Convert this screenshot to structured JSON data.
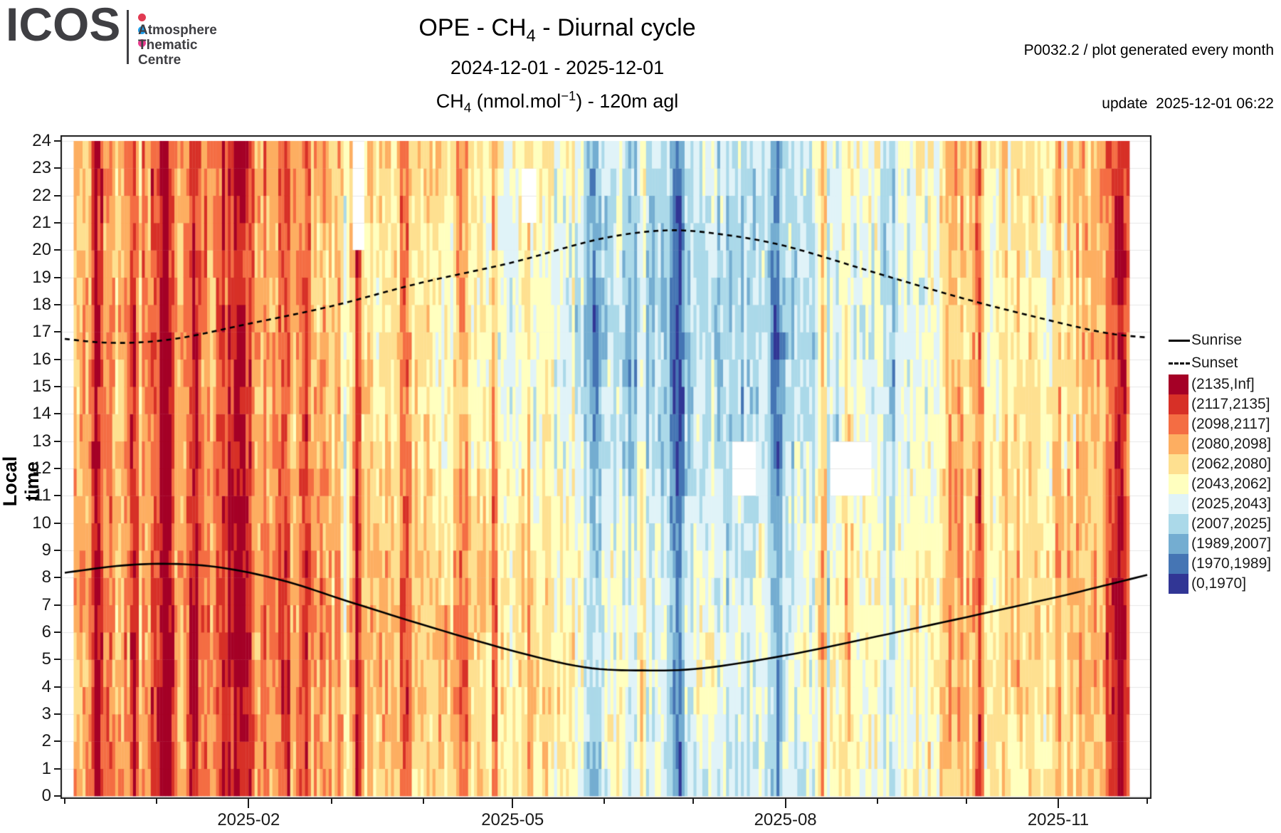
{
  "logo": {
    "brand": "ICOS",
    "unit_lines": [
      "Atmosphere",
      "Thematic",
      "Centre"
    ],
    "dot_colors": [
      "#e13a52",
      "#1e9ce8",
      "#e83d8f"
    ],
    "text_color": "#3f3f43"
  },
  "header": {
    "title_pre": "OPE - CH",
    "title_sub": "4",
    "title_post": " - Diurnal cycle",
    "subtitle": "2024-12-01 - 2025-12-01",
    "caption_pre": "CH",
    "caption_sub": "4",
    "caption_mid": " (nmol.mol",
    "caption_sup": "−1",
    "caption_post": ") - 120m agl",
    "meta_line1": "P0032.2 / plot generated every month",
    "meta_line2": "update  2025-12-01 06:22"
  },
  "axes": {
    "y_label": "Local time",
    "y_ticks": [
      24,
      23,
      22,
      21,
      20,
      19,
      18,
      17,
      16,
      15,
      14,
      13,
      12,
      11,
      10,
      9,
      8,
      7,
      6,
      5,
      4,
      3,
      2,
      1,
      0
    ]
  },
  "legend": {
    "sunrise_label": "Sunrise",
    "sunset_label": "Sunset"
  },
  "chart_data": {
    "type": "heatmap",
    "title": "OPE - CH4 - Diurnal cycle",
    "x_range": [
      "2024-12-01",
      "2025-12-01"
    ],
    "ylabel": "Local time",
    "ylim": [
      0,
      24
    ],
    "grid_color": "#e7e7e7",
    "x_ticks": [
      {
        "day": 62,
        "label": "2025-02"
      },
      {
        "day": 151,
        "label": "2025-05"
      },
      {
        "day": 243,
        "label": "2025-08"
      },
      {
        "day": 335,
        "label": "2025-11"
      }
    ],
    "x_minor_days": [
      0,
      31,
      90,
      121,
      182,
      212,
      274,
      304,
      365
    ],
    "bins": [
      {
        "label": "(2135,Inf]",
        "color": "#a50026",
        "min": 2135
      },
      {
        "label": "(2117,2135]",
        "color": "#d73027",
        "min": 2117
      },
      {
        "label": "(2098,2117]",
        "color": "#f46d43",
        "min": 2098
      },
      {
        "label": "(2080,2098]",
        "color": "#fdae61",
        "min": 2080
      },
      {
        "label": "(2062,2080]",
        "color": "#fee090",
        "min": 2062
      },
      {
        "label": "(2043,2062]",
        "color": "#ffffbf",
        "min": 2043
      },
      {
        "label": "(2025,2043]",
        "color": "#e0f3f8",
        "min": 2025
      },
      {
        "label": "(2007,2025]",
        "color": "#abd9e9",
        "min": 2007
      },
      {
        "label": "(1989,2007]",
        "color": "#74add1",
        "min": 1989
      },
      {
        "label": "(1970,1989]",
        "color": "#4575b4",
        "min": 1970
      },
      {
        "label": "(0,1970]",
        "color": "#313695",
        "min": 0
      }
    ],
    "base_points": [
      [
        0,
        2085
      ],
      [
        15,
        2088
      ],
      [
        45,
        2094
      ],
      [
        75,
        2089
      ],
      [
        105,
        2074
      ],
      [
        135,
        2063
      ],
      [
        165,
        2050
      ],
      [
        195,
        2026
      ],
      [
        225,
        2022
      ],
      [
        255,
        2032
      ],
      [
        285,
        2046
      ],
      [
        315,
        2066
      ],
      [
        345,
        2080
      ],
      [
        365,
        2086
      ]
    ],
    "episodes": [
      {
        "d": 8,
        "len": 5,
        "amp": 62
      },
      {
        "d": 21,
        "len": 4,
        "amp": 38
      },
      {
        "d": 29,
        "len": 8,
        "amp": 58
      },
      {
        "d": 41,
        "len": 5,
        "amp": 48
      },
      {
        "d": 51,
        "len": 13,
        "amp": 52
      },
      {
        "d": 72,
        "len": 4,
        "amp": 42
      },
      {
        "d": 79,
        "len": 4,
        "amp": 46
      },
      {
        "d": 97,
        "len": 3,
        "amp": 52
      },
      {
        "d": 112,
        "len": 5,
        "amp": 46
      },
      {
        "d": 131,
        "len": 5,
        "amp": 42
      },
      {
        "d": 143,
        "len": 3,
        "amp": 36
      },
      {
        "d": 154,
        "len": 4,
        "amp": 30
      },
      {
        "d": 161,
        "len": 4,
        "amp": 26
      },
      {
        "d": 193,
        "len": 3,
        "amp": 30
      },
      {
        "d": 217,
        "len": 3,
        "amp": 26
      },
      {
        "d": 253,
        "len": 4,
        "amp": 48
      },
      {
        "d": 261,
        "len": 5,
        "amp": 42
      },
      {
        "d": 295,
        "len": 10,
        "amp": 32
      },
      {
        "d": 305,
        "len": 5,
        "amp": 48
      },
      {
        "d": 351,
        "len": 8,
        "amp": 58
      },
      {
        "d": 93,
        "len": 3,
        "amp": -26
      },
      {
        "d": 175,
        "len": 6,
        "amp": -46
      },
      {
        "d": 204,
        "len": 5,
        "amp": -52
      },
      {
        "d": 237,
        "len": 5,
        "amp": -36
      },
      {
        "d": 276,
        "len": 5,
        "amp": -30
      },
      {
        "d": 329,
        "len": 4,
        "amp": -26
      }
    ],
    "missing": [
      {
        "d0": 0,
        "d1": 2,
        "h0": 0,
        "h1": 24
      },
      {
        "d0": 359,
        "d1": 365,
        "h0": 0,
        "h1": 24
      },
      {
        "d0": 97,
        "d1": 100,
        "h0": 20,
        "h1": 24
      },
      {
        "d0": 154,
        "d1": 158,
        "h0": 21,
        "h1": 23
      },
      {
        "d0": 225,
        "d1": 232,
        "h0": 11,
        "h1": 13
      },
      {
        "d0": 258,
        "d1": 271,
        "h0": 11,
        "h1": 13
      }
    ],
    "sunrise": {
      "points": [
        [
          0,
          8.18
        ],
        [
          20,
          8.45
        ],
        [
          38,
          8.5
        ],
        [
          55,
          8.33
        ],
        [
          75,
          7.85
        ],
        [
          95,
          7.15
        ],
        [
          120,
          6.3
        ],
        [
          150,
          5.35
        ],
        [
          175,
          4.72
        ],
        [
          195,
          4.6
        ],
        [
          215,
          4.68
        ],
        [
          243,
          5.15
        ],
        [
          274,
          5.85
        ],
        [
          304,
          6.55
        ],
        [
          335,
          7.3
        ],
        [
          352,
          7.75
        ],
        [
          365,
          8.1
        ]
      ]
    },
    "sunset": {
      "points": [
        [
          0,
          16.75
        ],
        [
          12,
          16.62
        ],
        [
          25,
          16.62
        ],
        [
          40,
          16.8
        ],
        [
          62,
          17.3
        ],
        [
          90,
          17.95
        ],
        [
          120,
          18.8
        ],
        [
          151,
          19.55
        ],
        [
          180,
          20.4
        ],
        [
          202,
          20.72
        ],
        [
          220,
          20.6
        ],
        [
          243,
          20.15
        ],
        [
          274,
          19.15
        ],
        [
          304,
          18.2
        ],
        [
          335,
          17.35
        ],
        [
          352,
          16.95
        ],
        [
          365,
          16.8
        ]
      ]
    }
  }
}
